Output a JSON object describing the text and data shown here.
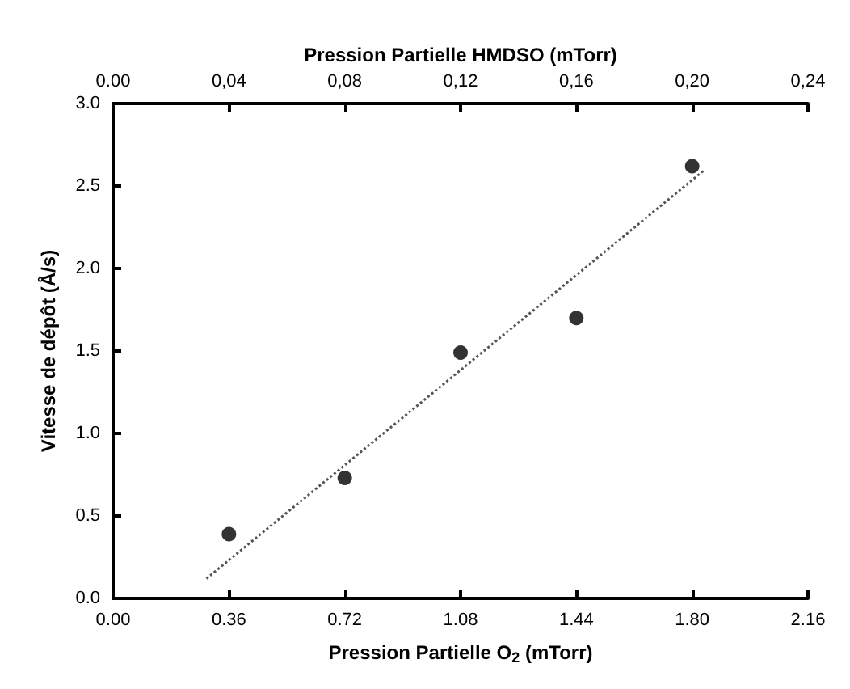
{
  "chart_data": {
    "type": "scatter",
    "xlabel": "Pression Partielle O$_{2}$ (mTorr)",
    "ylabel": "Vitesse de dépôt (Å/s)",
    "x2label": "Pression Partielle HMDSO (mTorr)",
    "xlim": [
      0,
      2.16
    ],
    "xticks": [
      {
        "value": 0,
        "label": "0.00"
      },
      0.36,
      0.72,
      1.08,
      1.44,
      {
        "value": 1.8,
        "label": "1.80"
      },
      2.16
    ],
    "x2lim": [
      0,
      0.24
    ],
    "x2ticks": [
      {
        "value": 0,
        "label": "0.00"
      },
      {
        "value": 0.04,
        "label": "0,04"
      },
      {
        "value": 0.08,
        "label": "0,08"
      },
      {
        "value": 0.12,
        "label": "0,12"
      },
      {
        "value": 0.16,
        "label": "0,16"
      },
      {
        "value": 0.2,
        "label": "0,20"
      },
      {
        "value": 0.24,
        "label": "0,24"
      }
    ],
    "ylim": [
      0,
      3
    ],
    "yticks": [
      {
        "value": 0,
        "label": "0.0"
      },
      0.5,
      {
        "value": 1,
        "label": "1.0"
      },
      1.5,
      {
        "value": 2,
        "label": "2.0"
      },
      2.5,
      {
        "value": 3,
        "label": "3.0"
      }
    ],
    "grid": false,
    "marker": "circle",
    "series": [
      {
        "color": "#000000",
        "x": [
          0.36,
          0.72,
          1.08,
          1.44,
          1.8
        ],
        "values": [
          0.39,
          0.73,
          1.49,
          1.7,
          2.62
        ]
      },
      {
        "type": "line",
        "color": "#555555",
        "line_style": "dotted",
        "marker": "none",
        "x": [
          0.29,
          1.84
        ],
        "values": [
          0.12,
          2.6
        ]
      }
    ]
  }
}
